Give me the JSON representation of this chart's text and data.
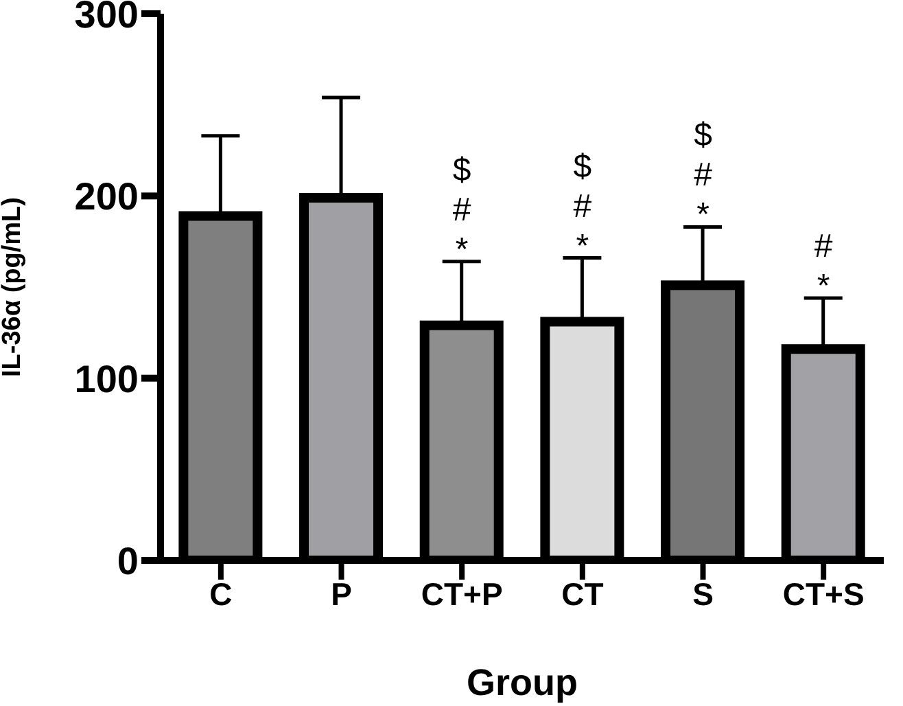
{
  "chart_data": {
    "type": "bar",
    "xlabel": "Group",
    "ylabel": "IL-36α (pg/mL)",
    "categories": [
      "C",
      "P",
      "CT+P",
      "CT",
      "S",
      "CT+S"
    ],
    "values": [
      189,
      199,
      129,
      131,
      151,
      116
    ],
    "colors": [
      "#7f7f7f",
      "#a0a0a4",
      "#8e8e8e",
      "#dcdcdc",
      "#767676",
      "#a2a2a6"
    ],
    "errors": [
      [
        189,
        233
      ],
      [
        199,
        254
      ],
      [
        129,
        164
      ],
      [
        131,
        166
      ],
      [
        151,
        183
      ],
      [
        116,
        144
      ]
    ],
    "ylim": [
      0,
      300
    ],
    "yticks": [
      0,
      100,
      200,
      300
    ],
    "grid": false,
    "legend": false,
    "annotations": [
      {
        "text": "$\n#\n*",
        "x": "CT+P",
        "y": 164
      },
      {
        "text": "$\n#\n*",
        "x": "CT",
        "y": 166
      },
      {
        "text": "$\n#\n*",
        "x": "S",
        "y": 183
      },
      {
        "text": "#\n*",
        "x": "CT+S",
        "y": 144
      }
    ]
  }
}
